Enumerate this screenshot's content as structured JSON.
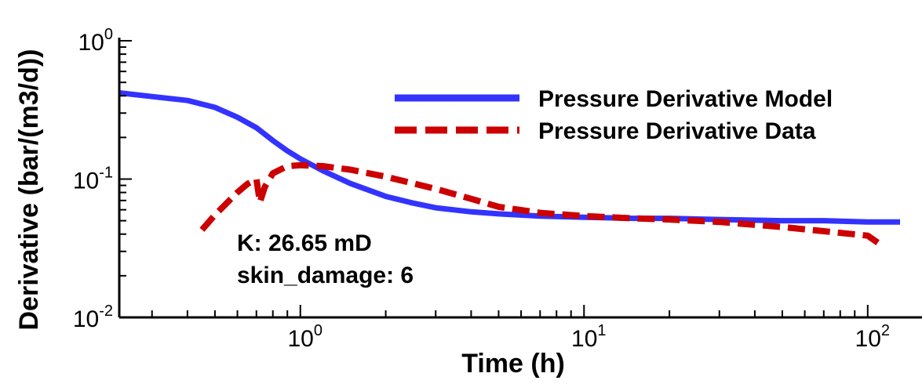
{
  "chart_data": {
    "type": "line",
    "xlabel": "Time (h)",
    "ylabel": "Derivative (bar/(m3/d))",
    "x_scale": "log",
    "y_scale": "log",
    "xlim": [
      0.23,
      130
    ],
    "ylim": [
      0.01,
      1
    ],
    "x_ticks": [
      {
        "value": 1,
        "base": "10",
        "exp": "0"
      },
      {
        "value": 10,
        "base": "10",
        "exp": "1"
      },
      {
        "value": 100,
        "base": "10",
        "exp": "2"
      }
    ],
    "y_ticks": [
      {
        "value": 0.01,
        "base": "10",
        "exp": "-2"
      },
      {
        "value": 0.1,
        "base": "10",
        "exp": "-1"
      },
      {
        "value": 1,
        "base": "10",
        "exp": "0"
      }
    ],
    "grid": false,
    "legend_position": "top-right",
    "series": [
      {
        "name": "Pressure Derivative Model",
        "color": "#3333ff",
        "style": "solid",
        "x": [
          0.23,
          0.3,
          0.4,
          0.5,
          0.6,
          0.7,
          0.8,
          0.9,
          1.0,
          1.2,
          1.5,
          2,
          2.5,
          3,
          4,
          5,
          7,
          10,
          15,
          20,
          30,
          50,
          70,
          100,
          130
        ],
        "y": [
          0.42,
          0.395,
          0.37,
          0.33,
          0.28,
          0.235,
          0.19,
          0.16,
          0.14,
          0.115,
          0.093,
          0.075,
          0.067,
          0.062,
          0.058,
          0.056,
          0.054,
          0.053,
          0.052,
          0.052,
          0.051,
          0.05,
          0.05,
          0.049,
          0.049
        ]
      },
      {
        "name": "Pressure Derivative Data",
        "color": "#cc0000",
        "style": "dashed",
        "x": [
          0.45,
          0.5,
          0.6,
          0.65,
          0.7,
          0.72,
          0.75,
          0.8,
          0.9,
          1.0,
          1.2,
          1.5,
          2,
          3,
          4,
          5,
          7,
          10,
          15,
          20,
          30,
          50,
          70,
          100,
          110
        ],
        "y": [
          0.043,
          0.055,
          0.08,
          0.092,
          0.1,
          0.068,
          0.088,
          0.11,
          0.124,
          0.126,
          0.124,
          0.117,
          0.104,
          0.085,
          0.072,
          0.063,
          0.057,
          0.054,
          0.052,
          0.051,
          0.049,
          0.045,
          0.042,
          0.039,
          0.034
        ]
      }
    ],
    "annotations": [
      "K: 26.65 mD",
      "skin_damage: 6"
    ]
  }
}
